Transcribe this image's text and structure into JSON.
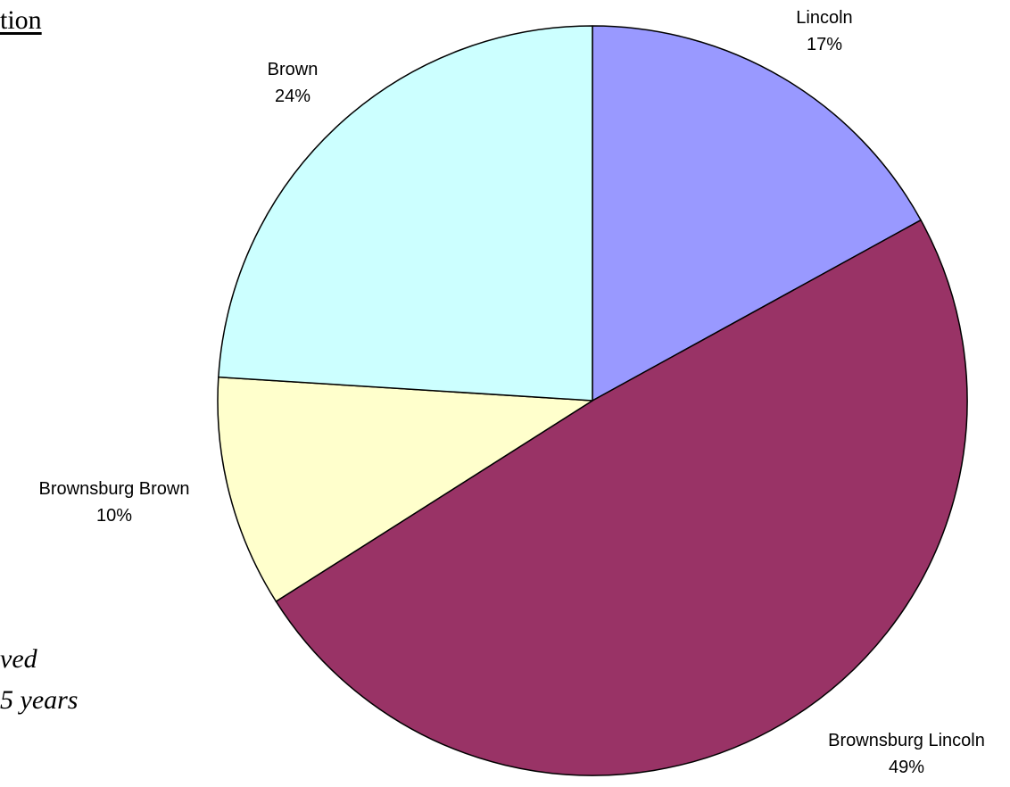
{
  "page": {
    "partial_title": "tion",
    "partial_note_lines": [
      "ved",
      "5 years"
    ]
  },
  "chart_data": {
    "type": "pie",
    "title": "",
    "slices": [
      {
        "label": "Lincoln",
        "value": 17,
        "value_label": "17%",
        "color": "#9999ff"
      },
      {
        "label": "Brownsburg Lincoln",
        "value": 49,
        "value_label": "49%",
        "color": "#993366"
      },
      {
        "label": "Brownsburg Brown",
        "value": 10,
        "value_label": "10%",
        "color": "#ffffcc"
      },
      {
        "label": "Brown",
        "value": 24,
        "value_label": "24%",
        "color": "#ccffff"
      }
    ],
    "start_angle": "12 o'clock",
    "direction": "clockwise",
    "legend": "none",
    "labels": "outside slices, category name above percentage"
  }
}
